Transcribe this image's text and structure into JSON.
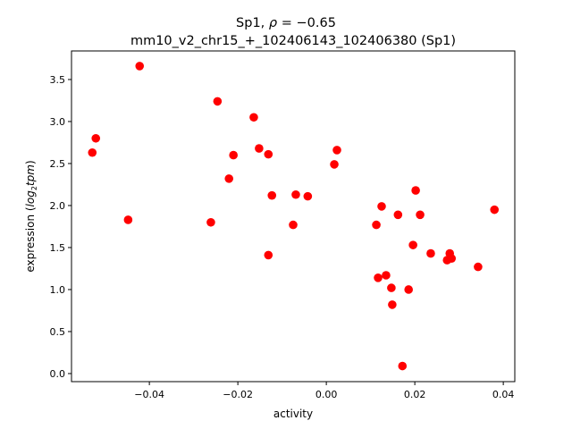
{
  "chart_data": {
    "type": "scatter",
    "title_line1_prefix": "Sp1, ",
    "title_line1_rho": "ρ",
    "title_line1_value": " = −0.65",
    "title_line2": "mm10_v2_chr15_+_102406143_102406380 (Sp1)",
    "xlabel": "activity",
    "ylabel_prefix": "expression (",
    "ylabel_log": "log",
    "ylabel_sub": "2",
    "ylabel_tpm": "tpm",
    "ylabel_suffix": ")",
    "xlim": [
      -0.0576,
      0.0426
    ],
    "ylim": [
      -0.096,
      3.84
    ],
    "xticks": [
      -0.04,
      -0.02,
      0.0,
      0.02,
      0.04
    ],
    "xtick_labels": [
      "−0.04",
      "−0.02",
      "0.00",
      "0.02",
      "0.04"
    ],
    "yticks": [
      0.0,
      0.5,
      1.0,
      1.5,
      2.0,
      2.5,
      3.0,
      3.5
    ],
    "ytick_labels": [
      "0.0",
      "0.5",
      "1.0",
      "1.5",
      "2.0",
      "2.5",
      "3.0",
      "3.5"
    ],
    "grid": false,
    "marker_color": "#ff0000",
    "points": [
      [
        -0.0529,
        2.63
      ],
      [
        -0.0521,
        2.8
      ],
      [
        -0.0422,
        3.66
      ],
      [
        -0.0448,
        1.83
      ],
      [
        -0.0246,
        3.24
      ],
      [
        -0.0261,
        1.8
      ],
      [
        -0.022,
        2.32
      ],
      [
        -0.021,
        2.6
      ],
      [
        -0.0164,
        3.05
      ],
      [
        -0.0152,
        2.68
      ],
      [
        -0.0131,
        2.61
      ],
      [
        -0.0123,
        2.12
      ],
      [
        -0.0131,
        1.41
      ],
      [
        -0.0069,
        2.13
      ],
      [
        -0.0042,
        2.11
      ],
      [
        -0.0075,
        1.77
      ],
      [
        0.0018,
        2.49
      ],
      [
        0.0024,
        2.66
      ],
      [
        0.0202,
        2.18
      ],
      [
        0.0125,
        1.99
      ],
      [
        0.0162,
        1.89
      ],
      [
        0.0212,
        1.89
      ],
      [
        0.0113,
        1.77
      ],
      [
        0.0196,
        1.53
      ],
      [
        0.0236,
        1.43
      ],
      [
        0.0279,
        1.43
      ],
      [
        0.0273,
        1.35
      ],
      [
        0.0283,
        1.37
      ],
      [
        0.0343,
        1.27
      ],
      [
        0.038,
        1.95
      ],
      [
        0.0117,
        1.14
      ],
      [
        0.0135,
        1.17
      ],
      [
        0.0147,
        1.02
      ],
      [
        0.0186,
        1.0
      ],
      [
        0.0149,
        0.82
      ],
      [
        0.0172,
        0.09
      ]
    ]
  }
}
